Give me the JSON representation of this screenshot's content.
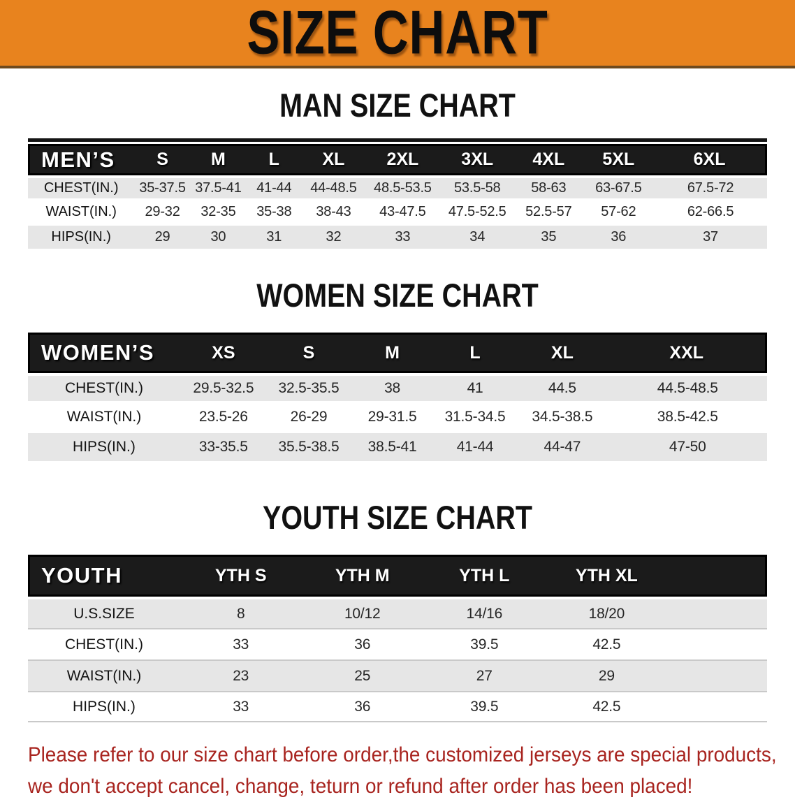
{
  "banner": {
    "title": "SIZE CHART",
    "bg_color": "#E8831E"
  },
  "sections": [
    {
      "heading": "MAN SIZE CHART",
      "corner_label": "MEN’S",
      "columns": [
        "S",
        "M",
        "L",
        "XL",
        "2XL",
        "3XL",
        "4XL",
        "5XL",
        "6XL"
      ],
      "rows": [
        {
          "label": "CHEST(IN.)",
          "values": [
            "35-37.5",
            "37.5-41",
            "41-44",
            "44-48.5",
            "48.5-53.5",
            "53.5-58",
            "58-63",
            "63-67.5",
            "67.5-72"
          ]
        },
        {
          "label": "WAIST(IN.)",
          "values": [
            "29-32",
            "32-35",
            "35-38",
            "38-43",
            "43-47.5",
            "47.5-52.5",
            "52.5-57",
            "57-62",
            "62-66.5"
          ]
        },
        {
          "label": "HIPS(IN.)",
          "values": [
            "29",
            "30",
            "31",
            "32",
            "33",
            "34",
            "35",
            "36",
            "37"
          ]
        }
      ]
    },
    {
      "heading": "WOMEN SIZE CHART",
      "corner_label": "WOMEN’S",
      "columns": [
        "XS",
        "S",
        "M",
        "L",
        "XL",
        "XXL"
      ],
      "rows": [
        {
          "label": "CHEST(IN.)",
          "values": [
            "29.5-32.5",
            "32.5-35.5",
            "38",
            "41",
            "44.5",
            "44.5-48.5"
          ]
        },
        {
          "label": "WAIST(IN.)",
          "values": [
            "23.5-26",
            "26-29",
            "29-31.5",
            "31.5-34.5",
            "34.5-38.5",
            "38.5-42.5"
          ]
        },
        {
          "label": "HIPS(IN.)",
          "values": [
            "33-35.5",
            "35.5-38.5",
            "38.5-41",
            "41-44",
            "44-47",
            "47-50"
          ]
        }
      ]
    },
    {
      "heading": "YOUTH SIZE CHART",
      "corner_label": "YOUTH",
      "columns": [
        "YTH S",
        "YTH M",
        "YTH L",
        "YTH XL"
      ],
      "rows": [
        {
          "label": "U.S.SIZE",
          "values": [
            "8",
            "10/12",
            "14/16",
            "18/20"
          ]
        },
        {
          "label": "CHEST(IN.)",
          "values": [
            "33",
            "36",
            "39.5",
            "42.5"
          ]
        },
        {
          "label": "WAIST(IN.)",
          "values": [
            "23",
            "25",
            "27",
            "29"
          ]
        },
        {
          "label": "HIPS(IN.)",
          "values": [
            "33",
            "36",
            "39.5",
            "42.5"
          ]
        }
      ]
    }
  ],
  "footer": {
    "color": "#A8241F",
    "lines": [
      "Please refer to our size chart before order,the customized jerseys are special products,",
      "we don't accept cancel, change, teturn or refund after order has been placed!"
    ]
  }
}
